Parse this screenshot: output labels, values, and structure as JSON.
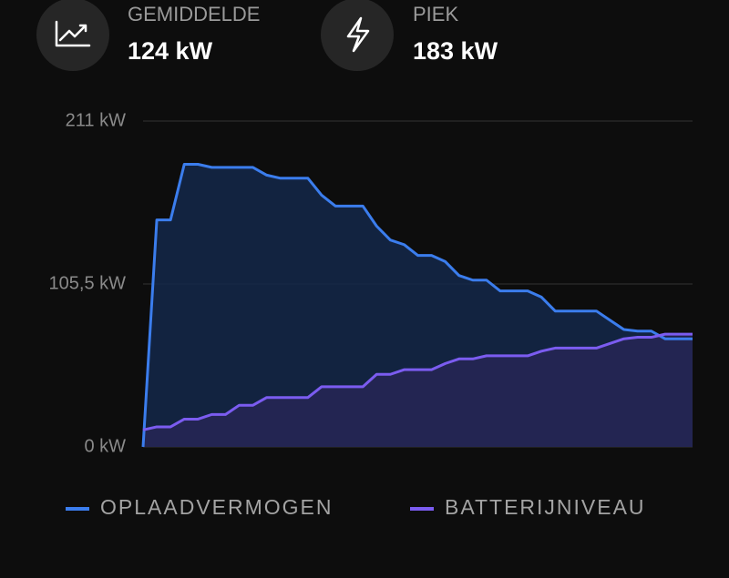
{
  "stats": [
    {
      "label": "GEMIDDELDE",
      "value": "124 kW"
    },
    {
      "label": "PIEK",
      "value": "183 kW"
    }
  ],
  "chart_data": {
    "type": "area",
    "categories": [
      null,
      null,
      null,
      null,
      null,
      null,
      null,
      null,
      null,
      null,
      null,
      null,
      null,
      null,
      null,
      null,
      null,
      null,
      null,
      null,
      null,
      null,
      null,
      null,
      null,
      null,
      null,
      null,
      null,
      null,
      null,
      null,
      null,
      null,
      null,
      null,
      null,
      null,
      null,
      null,
      null
    ],
    "series": [
      {
        "name": "OPLAADVERMOGEN",
        "color": "#3b7ded",
        "fill": "#14284a",
        "values": [
          0,
          147,
          147,
          183,
          183,
          181,
          181,
          181,
          181,
          176,
          174,
          174,
          174,
          163,
          156,
          156,
          156,
          143,
          134,
          131,
          124,
          124,
          120,
          111,
          108,
          108,
          101,
          101,
          101,
          97,
          88,
          88,
          88,
          88,
          82,
          76,
          75,
          75,
          70,
          70,
          70
        ]
      },
      {
        "name": "BATTERIJNIVEAU",
        "color": "#7b5cf0",
        "fill": "#272656",
        "values": [
          11,
          13,
          13,
          18,
          18,
          21,
          21,
          27,
          27,
          32,
          32,
          32,
          32,
          39,
          39,
          39,
          39,
          47,
          47,
          50,
          50,
          50,
          54,
          57,
          57,
          59,
          59,
          59,
          59,
          62,
          64,
          64,
          64,
          64,
          67,
          70,
          71,
          71,
          73,
          73,
          73
        ]
      }
    ],
    "ylim": [
      0,
      211
    ],
    "yticks": [
      {
        "value": 0,
        "label": "0 kW"
      },
      {
        "value": 105.5,
        "label": "105,5 kW"
      },
      {
        "value": 211,
        "label": "211 kW"
      }
    ],
    "grid": true
  }
}
